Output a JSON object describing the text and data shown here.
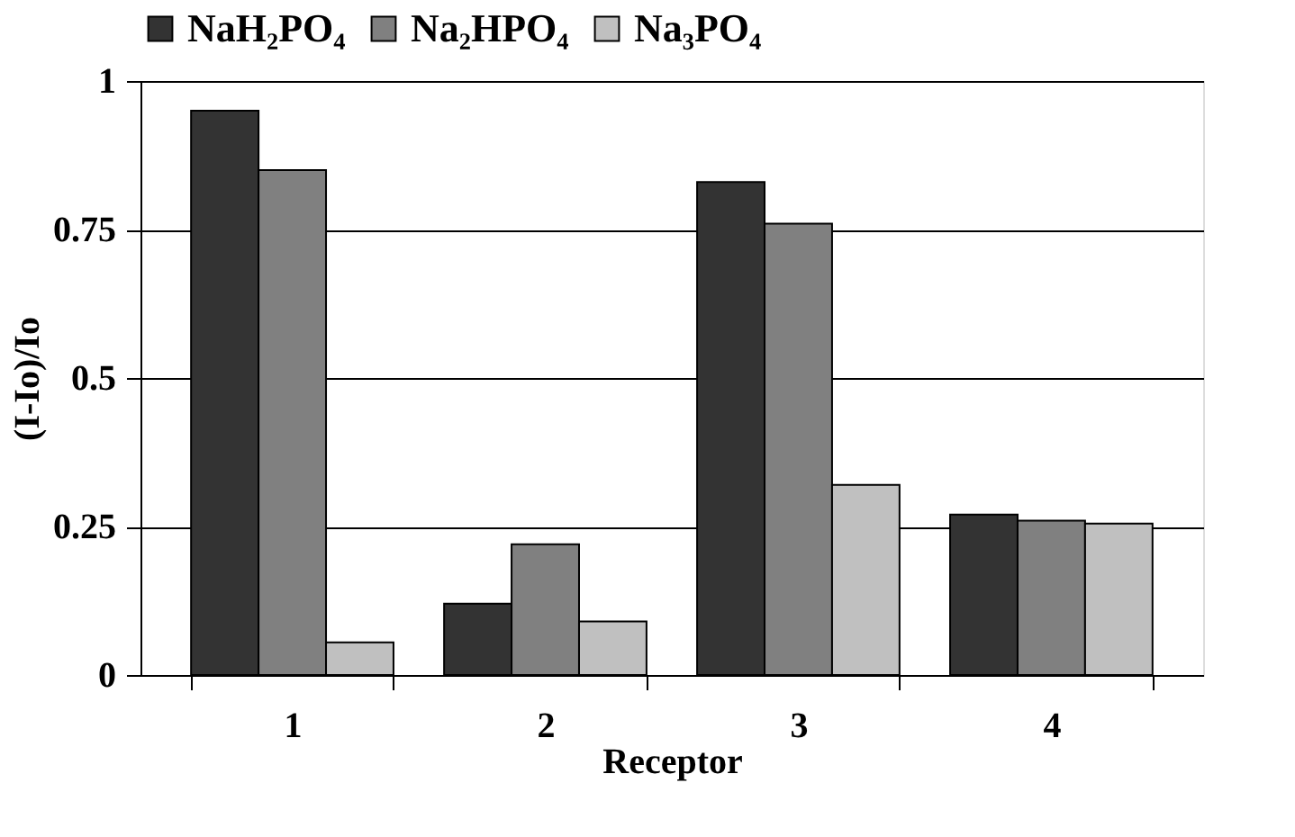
{
  "chart_data": {
    "type": "bar",
    "xlabel": "Receptor",
    "ylabel": "(I-Io)/Io",
    "categories": [
      "1",
      "2",
      "3",
      "4"
    ],
    "series": [
      {
        "name": "NaH₂PO₄",
        "color": "#333333",
        "values": [
          0.95,
          0.12,
          0.83,
          0.27
        ]
      },
      {
        "name": "Na₂HPO₄",
        "color": "#808080",
        "values": [
          0.85,
          0.22,
          0.76,
          0.26
        ]
      },
      {
        "name": "Na₃PO₄",
        "color": "#c0c0c0",
        "values": [
          0.055,
          0.09,
          0.32,
          0.255
        ]
      }
    ],
    "ylim": [
      0,
      1
    ],
    "yticks": [
      0,
      0.25,
      0.5,
      0.75,
      1
    ],
    "grid": "y",
    "legend": "top"
  }
}
